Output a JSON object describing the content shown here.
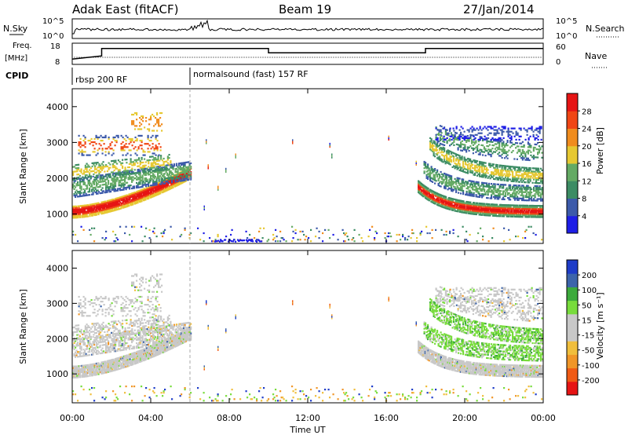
{
  "header": {
    "station": "Adak East (fitACF)",
    "beam": "Beam 19",
    "date": "27/Jan/2014"
  },
  "top_panels": {
    "nsky_label": "N.Sky",
    "nsearch_label": "N.Search",
    "nsky_ticks": [
      "10^5",
      "10^0"
    ],
    "nsearch_ticks": [
      "10^5",
      "10^0"
    ],
    "freq_label_1": "Freq.",
    "freq_label_2": "[MHz]",
    "freq_ticks": [
      "18",
      "8"
    ],
    "nave_label": "Nave",
    "nave_ticks": [
      "60",
      "0"
    ],
    "cpid_label": "CPID",
    "cpid_segments": [
      {
        "label": "rbsp 200 RF",
        "start_hour": 0,
        "end_hour": 6
      },
      {
        "label": "normalsound (fast) 157 RF",
        "start_hour": 6,
        "end_hour": 24
      }
    ]
  },
  "axes": {
    "x_ticks": [
      "00:00",
      "04:00",
      "08:00",
      "12:00",
      "16:00",
      "20:00",
      "00:00"
    ],
    "x_label": "Time UT",
    "y_label": "Slant Range [km]",
    "y_ticks": [
      "1000",
      "2000",
      "3000",
      "4000"
    ]
  },
  "colors": {
    "power": [
      "#1e1ee6",
      "#3c5aaa",
      "#3c8c64",
      "#64aa64",
      "#e6c832",
      "#f08c1e",
      "#f04614",
      "#e61414"
    ],
    "velocity": [
      "#e61414",
      "#f05a14",
      "#f09628",
      "#f0be3c",
      "#c8c8c8",
      "#c8c8c8",
      "#78dc3c",
      "#3caa3c",
      "#3c64aa",
      "#1e3cc8"
    ]
  },
  "chart_data": [
    {
      "type": "heatmap",
      "title": "",
      "xlabel": "",
      "ylabel": "Slant Range [km]",
      "xlim": [
        0,
        24
      ],
      "ylim": [
        180,
        4500
      ],
      "colorbar_label": "Power [dB]",
      "colorbar_ticks": [
        "4",
        "8",
        "12",
        "16",
        "20",
        "24",
        "28"
      ],
      "colorbar_range": [
        0,
        32
      ]
    },
    {
      "type": "heatmap",
      "title": "",
      "xlabel": "Time UT",
      "ylabel": "Slant Range [km]",
      "xlim": [
        0,
        24
      ],
      "ylim": [
        180,
        4500
      ],
      "colorbar_label": "Velocity [m s⁻¹]",
      "colorbar_ticks": [
        "200",
        "100",
        "50",
        "15",
        "-15",
        "-50",
        "-100",
        "-200"
      ]
    },
    {
      "type": "line",
      "title": "",
      "xlabel": "",
      "ylabel": "Freq. [MHz]",
      "x": [
        0,
        1.5,
        1.5,
        10,
        10,
        18,
        18,
        24
      ],
      "values": [
        10.5,
        12,
        15.5,
        15.5,
        13.5,
        13.5,
        15.5,
        15.5
      ],
      "ylim": [
        8,
        18
      ]
    }
  ]
}
